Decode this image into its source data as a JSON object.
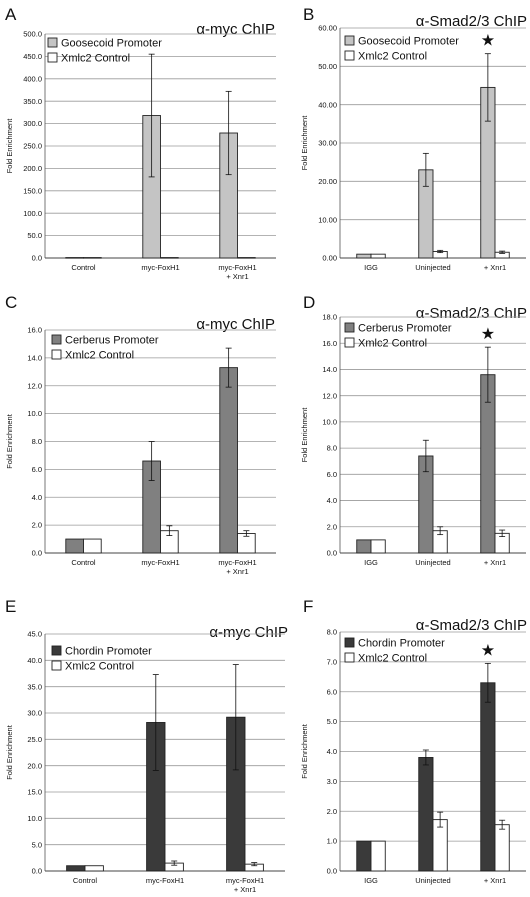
{
  "figure": {
    "ylabel": "Fold Enrichment",
    "colors": {
      "background": "#ffffff",
      "grid": "#9a9a9a",
      "goosecoid_bar": "#c4c4c4",
      "cerberus_bar": "#808080",
      "chordin_bar": "#3a3a3a",
      "control_bar": "#ffffff",
      "outline": "#222222"
    }
  },
  "chart_data": [
    {
      "panel": "A",
      "type": "bar",
      "title": "α-myc ChIP",
      "ylabel": "Fold Enrichment",
      "ylim": [
        0,
        500
      ],
      "yticks": [
        0,
        50,
        100,
        150,
        200,
        250,
        300,
        350,
        400,
        450,
        500
      ],
      "ydecimals": 1,
      "categories": [
        "Control",
        "myc-FoxH1",
        "myc-FoxH1\n+ Xnr1"
      ],
      "series": [
        {
          "name": "Goosecoid Promoter",
          "values": [
            1,
            318,
            279
          ],
          "errors": [
            0,
            137,
            93
          ],
          "color": "#c4c4c4"
        },
        {
          "name": "Xmlc2 Control",
          "values": [
            1,
            1,
            1
          ],
          "errors": [
            0,
            0,
            0
          ],
          "color": "#ffffff"
        }
      ],
      "star_category": null
    },
    {
      "panel": "B",
      "type": "bar",
      "title": "α-Smad2/3 ChIP",
      "ylabel": "Fold Enrichment",
      "ylim": [
        0,
        60
      ],
      "yticks": [
        0,
        10,
        20,
        30,
        40,
        50,
        60
      ],
      "ydecimals": 2,
      "categories": [
        "IGG",
        "Uninjected",
        "+ Xnr1"
      ],
      "series": [
        {
          "name": "Goosecoid Promoter",
          "values": [
            1,
            23,
            44.5
          ],
          "errors": [
            0,
            4.3,
            8.8
          ],
          "color": "#c4c4c4"
        },
        {
          "name": "Xmlc2 Control",
          "values": [
            1,
            1.7,
            1.5
          ],
          "errors": [
            0,
            0.3,
            0.3
          ],
          "color": "#ffffff"
        }
      ],
      "star_category": 2
    },
    {
      "panel": "C",
      "type": "bar",
      "title": "α-myc ChIP",
      "ylabel": "Fold Enrichment",
      "ylim": [
        0,
        16
      ],
      "yticks": [
        0,
        2,
        4,
        6,
        8,
        10,
        12,
        14,
        16
      ],
      "ydecimals": 1,
      "categories": [
        "Control",
        "myc-FoxH1",
        "myc-FoxH1\n+ Xnr1"
      ],
      "series": [
        {
          "name": "Cerberus Promoter",
          "values": [
            1,
            6.6,
            13.3
          ],
          "errors": [
            0,
            1.4,
            1.4
          ],
          "color": "#808080"
        },
        {
          "name": "Xmlc2 Control",
          "values": [
            1,
            1.6,
            1.4
          ],
          "errors": [
            0,
            0.35,
            0.2
          ],
          "color": "#ffffff"
        }
      ],
      "star_category": null
    },
    {
      "panel": "D",
      "type": "bar",
      "title": "α-Smad2/3 ChIP",
      "ylabel": "Fold Enrichment",
      "ylim": [
        0,
        18
      ],
      "yticks": [
        0,
        2,
        4,
        6,
        8,
        10,
        12,
        14,
        16,
        18
      ],
      "ydecimals": 1,
      "categories": [
        "IGG",
        "Uninjected",
        "+ Xnr1"
      ],
      "series": [
        {
          "name": "Cerberus Promoter",
          "values": [
            1,
            7.4,
            13.6
          ],
          "errors": [
            0,
            1.2,
            2.1
          ],
          "color": "#808080"
        },
        {
          "name": "Xmlc2 Control",
          "values": [
            1,
            1.7,
            1.5
          ],
          "errors": [
            0,
            0.3,
            0.25
          ],
          "color": "#ffffff"
        }
      ],
      "star_category": 2
    },
    {
      "panel": "E",
      "type": "bar",
      "title": "α-myc ChIP",
      "ylabel": "Fold Enrichment",
      "ylim": [
        0,
        45
      ],
      "yticks": [
        0,
        5,
        10,
        15,
        20,
        25,
        30,
        35,
        40,
        45
      ],
      "ydecimals": 1,
      "categories": [
        "Control",
        "myc-FoxH1",
        "myc-FoxH1\n+ Xnr1"
      ],
      "series": [
        {
          "name": "Chordin Promoter",
          "values": [
            1,
            28.2,
            29.2
          ],
          "errors": [
            0,
            9.1,
            10
          ],
          "color": "#3a3a3a"
        },
        {
          "name": "Xmlc2 Control",
          "values": [
            1,
            1.5,
            1.3
          ],
          "errors": [
            0,
            0.4,
            0.3
          ],
          "color": "#ffffff"
        }
      ],
      "star_category": null
    },
    {
      "panel": "F",
      "type": "bar",
      "title": "α-Smad2/3 ChIP",
      "ylabel": "Fold Enrichment",
      "ylim": [
        0,
        8
      ],
      "yticks": [
        0,
        1,
        2,
        3,
        4,
        5,
        6,
        7,
        8
      ],
      "ydecimals": 1,
      "categories": [
        "IGG",
        "Uninjected",
        "+ Xnr1"
      ],
      "series": [
        {
          "name": "Chordin Promoter",
          "values": [
            1,
            3.8,
            6.3
          ],
          "errors": [
            0,
            0.25,
            0.65
          ],
          "color": "#3a3a3a"
        },
        {
          "name": "Xmlc2 Control",
          "values": [
            1,
            1.72,
            1.55
          ],
          "errors": [
            0,
            0.25,
            0.15
          ],
          "color": "#ffffff"
        }
      ],
      "star_category": 2
    }
  ]
}
